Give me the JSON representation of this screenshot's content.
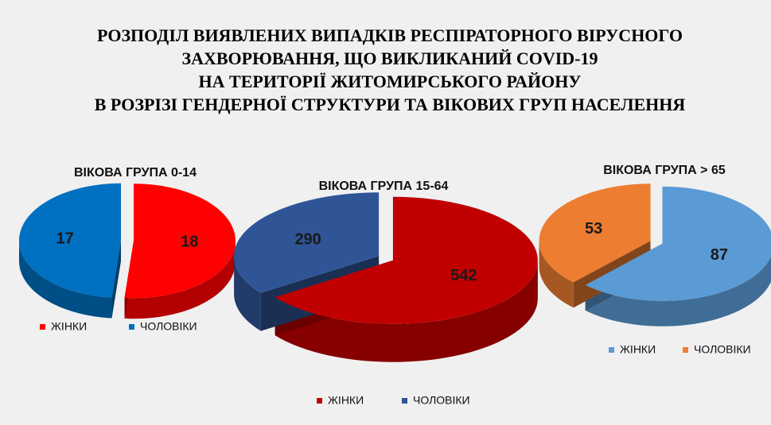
{
  "title": [
    "РОЗПОДІЛ ВИЯВЛЕНИХ ВИПАДКІВ РЕСПІРАТОРНОГО ВІРУСНОГО",
    "ЗАХВОРЮВАННЯ, ЩО ВИКЛИКАНИЙ COVID-19",
    "НА ТЕРИТОРІЇ ЖИТОМИРСЬКОГО РАЙОНУ",
    "В РОЗРІЗІ ГЕНДЕРНОЇ СТРУКТУРИ ТА ВІКОВИХ ГРУП НАСЕЛЕННЯ"
  ],
  "chart_data": [
    {
      "type": "pie",
      "title": "ВІКОВА ГРУПА 0-14",
      "categories": [
        "ЖІНКИ",
        "ЧОЛОВІКИ"
      ],
      "values": [
        18,
        17
      ],
      "colors": [
        "#ff0000",
        "#0070c0"
      ]
    },
    {
      "type": "pie",
      "title": "ВІКОВА ГРУПА 15-64",
      "categories": [
        "ЖІНКИ",
        "ЧОЛОВІКИ"
      ],
      "values": [
        542,
        290
      ],
      "colors": [
        "#c00000",
        "#2f5597"
      ]
    },
    {
      "type": "pie",
      "title": "ВІКОВА ГРУПА > 65",
      "categories": [
        "ЖІНКИ",
        "ЧОЛОВІКИ"
      ],
      "values": [
        87,
        53
      ],
      "colors": [
        "#5b9bd5",
        "#ed7d31"
      ]
    }
  ]
}
